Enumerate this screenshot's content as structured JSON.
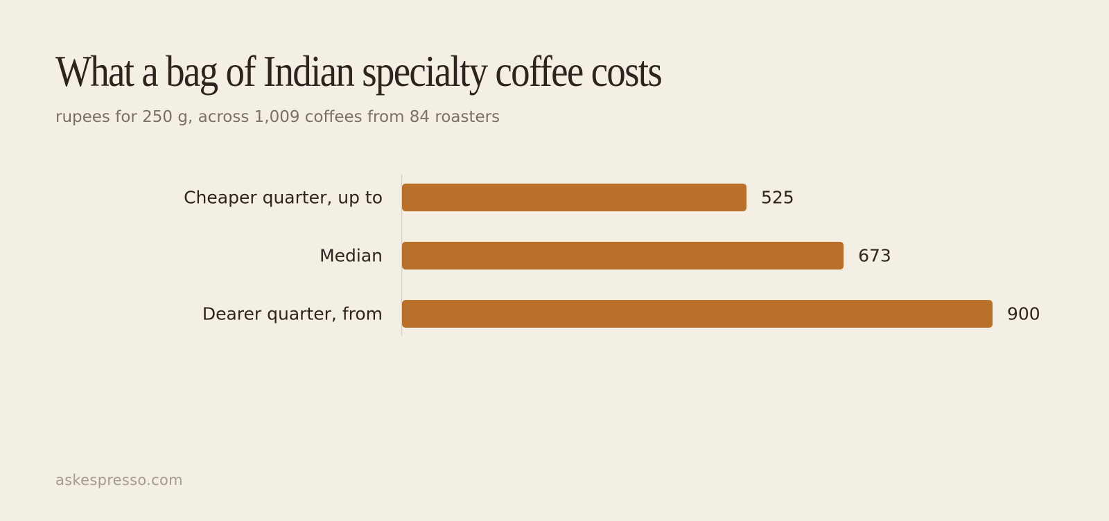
{
  "title": "What a bag of Indian specialty coffee costs",
  "subtitle": "rupees for 250 g, across 1,009 coffees from 84 roasters",
  "footer": "askespresso.com",
  "colors": {
    "background": "#f4efe4",
    "bar": "#b8702a",
    "text": "#2e241d",
    "muted": "#7b7066",
    "axis": "#d8d0c4"
  },
  "chart_data": {
    "type": "bar",
    "orientation": "horizontal",
    "categories": [
      "Cheaper quarter, up to",
      "Median",
      "Dearer quarter, from"
    ],
    "values": [
      525,
      673,
      900
    ],
    "value_labels": [
      "525",
      "673",
      "900"
    ],
    "xlim": [
      0,
      900
    ],
    "grid": false,
    "legend": "none"
  }
}
